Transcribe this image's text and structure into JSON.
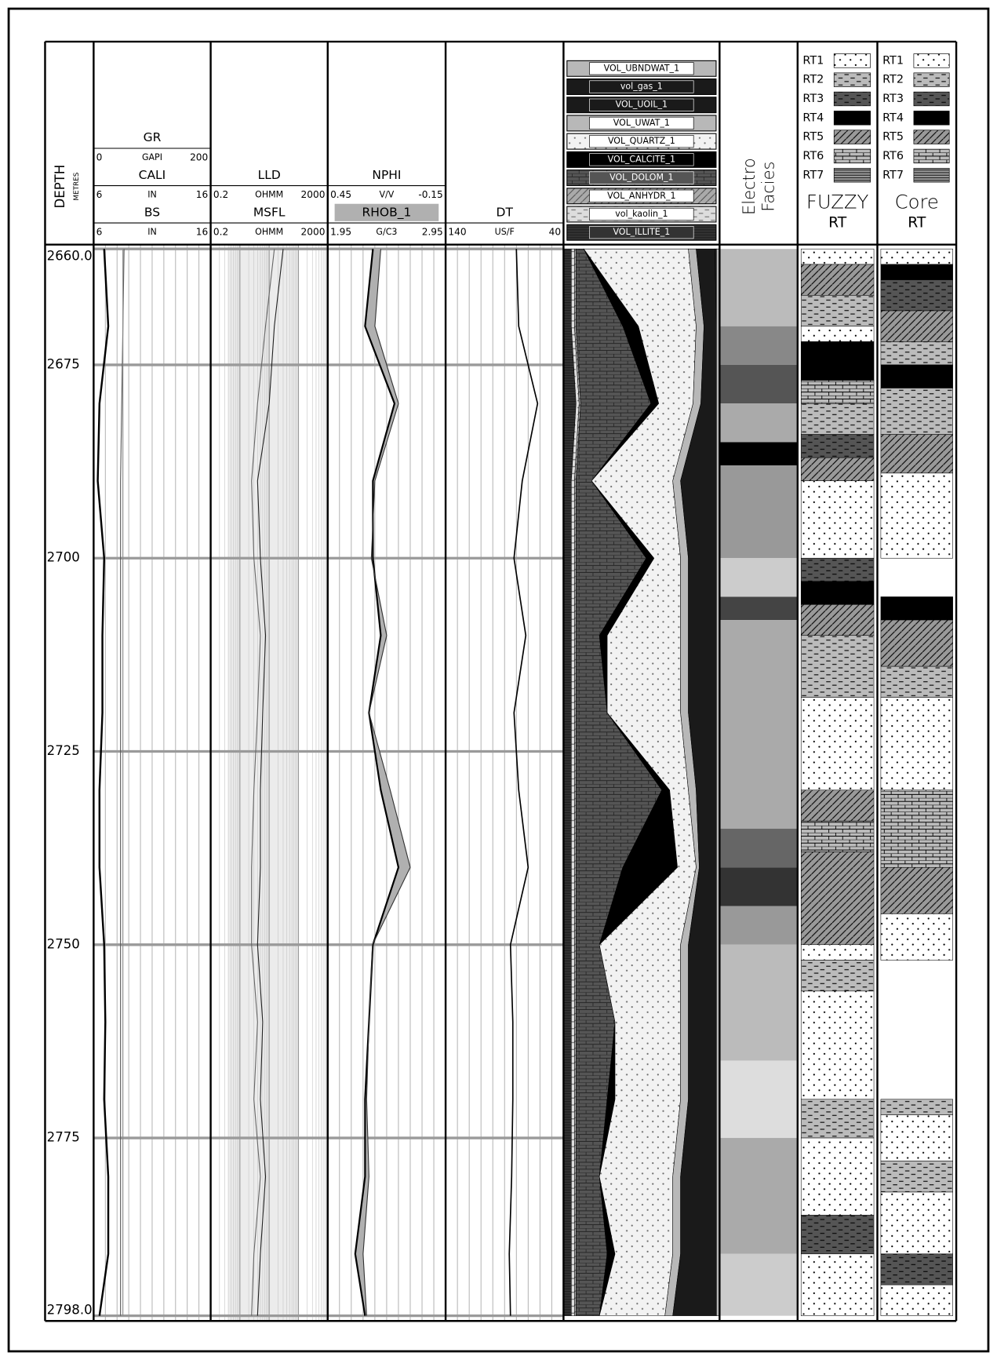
{
  "chart_data": {
    "type": "well-log",
    "depth_title": "DEPTH",
    "depth_unit": "METRES",
    "ylim": [
      2660,
      2798
    ],
    "yticks": [
      {
        "value": 2660,
        "label": "2660.0"
      },
      2675,
      2700,
      2725,
      2750,
      2775,
      {
        "value": 2798,
        "label": "2798.0"
      }
    ],
    "depth": [
      2660,
      2670,
      2680,
      2690,
      2700,
      2710,
      2720,
      2730,
      2740,
      2750,
      2760,
      2770,
      2780,
      2790,
      2798
    ],
    "tracks": [
      {
        "log": false,
        "curves": [
          {
            "name": "GR",
            "unit": "GAPI",
            "scale": [
              0,
              200
            ],
            "color": "#000000",
            "width": 2.2,
            "values": [
              18,
              25,
              10,
              7,
              18,
              15,
              15,
              10,
              10,
              18,
              20,
              18,
              25,
              25,
              10
            ]
          },
          {
            "name": "CALI",
            "unit": "IN",
            "scale": [
              6,
              16
            ],
            "color": "#555555",
            "width": 1,
            "values": [
              8.6,
              8.5,
              8.4,
              8.3,
              8.3,
              8.3,
              8.3,
              8.3,
              8.3,
              8.3,
              8.3,
              8.3,
              8.3,
              8.3,
              8.3
            ]
          },
          {
            "name": "BS",
            "unit": "IN",
            "scale": [
              6,
              16
            ],
            "color": "#888888",
            "width": 1,
            "values": [
              8.5,
              8.5,
              8.5,
              8.5,
              8.5,
              8.5,
              8.5,
              8.5,
              8.5,
              8.5,
              8.5,
              8.5,
              8.5,
              8.5,
              8.5
            ]
          }
        ]
      },
      {
        "log": true,
        "curves": [
          {
            "name": "LLD",
            "unit": "OHMM",
            "scale": [
              0.2,
              2000
            ],
            "color": "#222222",
            "width": 1,
            "values": [
              60,
              30,
              20,
              8,
              10,
              15,
              12,
              10,
              10,
              8,
              12,
              10,
              15,
              10,
              8
            ]
          },
          {
            "name": "MSFL",
            "unit": "OHMM",
            "scale": [
              0.2,
              2000
            ],
            "color": "#666666",
            "width": 1,
            "values": [
              30,
              15,
              8,
              5,
              6,
              10,
              8,
              6,
              5,
              5,
              8,
              6,
              10,
              6,
              5
            ]
          }
        ]
      },
      {
        "log": false,
        "curves": [
          {
            "name": "NPHI",
            "unit": "V/V",
            "scale": [
              0.45,
              -0.15
            ],
            "color": "#000000",
            "width": 2,
            "values": [
              0.22,
              0.26,
              0.11,
              0.22,
              0.22,
              0.18,
              0.24,
              0.18,
              0.09,
              0.22,
              0.24,
              0.26,
              0.26,
              0.31,
              0.26
            ]
          },
          {
            "name": "RHOB_1",
            "unit": "G/C3",
            "scale": [
              1.95,
              2.95
            ],
            "color": "#333333",
            "width": 1,
            "fill_color": "#b0b0b0",
            "values": [
              2.4,
              2.35,
              2.55,
              2.35,
              2.32,
              2.45,
              2.3,
              2.48,
              2.65,
              2.33,
              2.3,
              2.28,
              2.3,
              2.25,
              2.28
            ]
          }
        ]
      },
      {
        "log": false,
        "curves": [
          {
            "name": "DT",
            "unit": "US/F",
            "scale": [
              140,
              40
            ],
            "color": "#000000",
            "width": 1.5,
            "values": [
              80,
              78,
              62,
              75,
              82,
              72,
              82,
              78,
              70,
              85,
              83,
              83,
              84,
              86,
              85
            ]
          }
        ]
      }
    ],
    "volumes": [
      {
        "name": "VOL_UBNDWAT_1",
        "color": "#b8b8b8",
        "values": [
          0.02,
          0.02,
          0.02,
          0.02,
          0.02,
          0.02,
          0.02,
          0.02,
          0.02,
          0.02,
          0.02,
          0.02,
          0.02,
          0.02,
          0.02
        ]
      },
      {
        "name": "vol_gas_1",
        "color": "#1a1a1a",
        "values": [
          0.01,
          0,
          0,
          0,
          0,
          0,
          0,
          0,
          0,
          0,
          0,
          0,
          0,
          0,
          0
        ]
      },
      {
        "name": "VOL_UOIL_1",
        "color": "#1a1a1a",
        "values": [
          0.12,
          0.08,
          0.1,
          0.23,
          0.18,
          0.18,
          0.18,
          0.13,
          0.11,
          0.18,
          0.18,
          0.18,
          0.23,
          0.23,
          0.28
        ]
      },
      {
        "name": "VOL_UWAT_1",
        "color": "#b8b8b8",
        "values": [
          0.05,
          0.05,
          0.05,
          0.05,
          0.05,
          0.05,
          0.05,
          0.05,
          0.02,
          0.05,
          0.05,
          0.05,
          0.05,
          0.05,
          0.05
        ]
      },
      {
        "name": "VOL_QUARTZ_1",
        "color": "#f2f2f2",
        "pattern": "dots",
        "values": [
          0.67,
          0.37,
          0.22,
          0.52,
          0.17,
          0.47,
          0.47,
          0.12,
          0.12,
          0.52,
          0.42,
          0.42,
          0.47,
          0.37,
          0.42
        ]
      },
      {
        "name": "VOL_CALCITE_1",
        "color": "#000000",
        "values": [
          0,
          0.1,
          0.05,
          0,
          0.05,
          0.05,
          0,
          0.05,
          0.35,
          0,
          0,
          0.05,
          0,
          0.05,
          0
        ]
      },
      {
        "name": "VOL_DOLOM_1",
        "color": "#555555",
        "pattern": "brick",
        "values": [
          0.05,
          0.3,
          0.45,
          0.1,
          0.45,
          0.15,
          0.2,
          0.55,
          0.3,
          0.15,
          0.25,
          0.2,
          0.15,
          0.2,
          0.15
        ]
      },
      {
        "name": "VOL_ANHYDR_1",
        "color": "#aaaaaa",
        "pattern": "hatch",
        "values": [
          0.01,
          0.01,
          0.01,
          0.01,
          0.01,
          0.01,
          0.01,
          0.01,
          0.01,
          0.01,
          0.01,
          0.01,
          0.01,
          0.01,
          0.01
        ]
      },
      {
        "name": "vol_kaolin_1",
        "color": "#dddddd",
        "pattern": "dashes",
        "values": [
          0.02,
          0.02,
          0.02,
          0.02,
          0.02,
          0.02,
          0.02,
          0.02,
          0.02,
          0.02,
          0.02,
          0.02,
          0.02,
          0.02,
          0.02
        ]
      },
      {
        "name": "VOL_ILLITE_1",
        "color": "#333333",
        "pattern": "lines",
        "values": [
          0.05,
          0.05,
          0.08,
          0.05,
          0.05,
          0.05,
          0.05,
          0.05,
          0.05,
          0.05,
          0.05,
          0.05,
          0.05,
          0.05,
          0.05
        ]
      }
    ],
    "electro_facies": {
      "title": [
        "Electro",
        "Facies"
      ],
      "intervals": [
        {
          "top": 2660,
          "base": 2670,
          "color": "#bbbbbb"
        },
        {
          "top": 2670,
          "base": 2675,
          "color": "#888888"
        },
        {
          "top": 2675,
          "base": 2680,
          "color": "#555555"
        },
        {
          "top": 2680,
          "base": 2685,
          "color": "#aaaaaa"
        },
        {
          "top": 2685,
          "base": 2688,
          "color": "#000000"
        },
        {
          "top": 2688,
          "base": 2700,
          "color": "#999999"
        },
        {
          "top": 2700,
          "base": 2705,
          "color": "#cccccc"
        },
        {
          "top": 2705,
          "base": 2708,
          "color": "#444444"
        },
        {
          "top": 2708,
          "base": 2735,
          "color": "#aaaaaa"
        },
        {
          "top": 2735,
          "base": 2740,
          "color": "#666666"
        },
        {
          "top": 2740,
          "base": 2745,
          "color": "#333333"
        },
        {
          "top": 2745,
          "base": 2750,
          "color": "#999999"
        },
        {
          "top": 2750,
          "base": 2765,
          "color": "#bbbbbb"
        },
        {
          "top": 2765,
          "base": 2775,
          "color": "#dddddd"
        },
        {
          "top": 2775,
          "base": 2790,
          "color": "#aaaaaa"
        },
        {
          "top": 2790,
          "base": 2798,
          "color": "#cccccc"
        }
      ]
    },
    "rt_types": [
      {
        "name": "RT1",
        "color": "#ffffff",
        "pattern": "dots"
      },
      {
        "name": "RT2",
        "color": "#bbbbbb",
        "pattern": "dashes"
      },
      {
        "name": "RT3",
        "color": "#555555",
        "pattern": "dashes"
      },
      {
        "name": "RT4",
        "color": "#000000"
      },
      {
        "name": "RT5",
        "color": "#999999",
        "pattern": "hatch"
      },
      {
        "name": "RT6",
        "color": "#bbbbbb",
        "pattern": "brick"
      },
      {
        "name": "RT7",
        "color": "#999999",
        "pattern": "lines"
      }
    ],
    "rt_columns": [
      {
        "title": "FUZZY",
        "subtitle": "RT",
        "intervals": [
          {
            "top": 2660,
            "base": 2662,
            "rt": 1
          },
          {
            "top": 2662,
            "base": 2666,
            "rt": 5
          },
          {
            "top": 2666,
            "base": 2670,
            "rt": 2
          },
          {
            "top": 2670,
            "base": 2672,
            "rt": 1
          },
          {
            "top": 2672,
            "base": 2677,
            "rt": 4
          },
          {
            "top": 2677,
            "base": 2680,
            "rt": 6
          },
          {
            "top": 2680,
            "base": 2684,
            "rt": 2
          },
          {
            "top": 2684,
            "base": 2687,
            "rt": 3
          },
          {
            "top": 2687,
            "base": 2690,
            "rt": 5
          },
          {
            "top": 2690,
            "base": 2700,
            "rt": 1
          },
          {
            "top": 2700,
            "base": 2703,
            "rt": 3
          },
          {
            "top": 2703,
            "base": 2706,
            "rt": 4
          },
          {
            "top": 2706,
            "base": 2710,
            "rt": 5
          },
          {
            "top": 2710,
            "base": 2718,
            "rt": 2
          },
          {
            "top": 2718,
            "base": 2730,
            "rt": 1
          },
          {
            "top": 2730,
            "base": 2734,
            "rt": 5
          },
          {
            "top": 2734,
            "base": 2738,
            "rt": 6
          },
          {
            "top": 2738,
            "base": 2750,
            "rt": 5
          },
          {
            "top": 2750,
            "base": 2752,
            "rt": 1
          },
          {
            "top": 2752,
            "base": 2756,
            "rt": 2
          },
          {
            "top": 2756,
            "base": 2770,
            "rt": 1
          },
          {
            "top": 2770,
            "base": 2775,
            "rt": 2
          },
          {
            "top": 2775,
            "base": 2785,
            "rt": 1
          },
          {
            "top": 2785,
            "base": 2790,
            "rt": 3
          },
          {
            "top": 2790,
            "base": 2798,
            "rt": 1
          }
        ]
      },
      {
        "title": "Core",
        "subtitle": "RT",
        "intervals": [
          {
            "top": 2660,
            "base": 2662,
            "rt": 1
          },
          {
            "top": 2662,
            "base": 2664,
            "rt": 4
          },
          {
            "top": 2664,
            "base": 2668,
            "rt": 3
          },
          {
            "top": 2668,
            "base": 2672,
            "rt": 5
          },
          {
            "top": 2672,
            "base": 2675,
            "rt": 2
          },
          {
            "top": 2675,
            "base": 2678,
            "rt": 4
          },
          {
            "top": 2678,
            "base": 2684,
            "rt": 2
          },
          {
            "top": 2684,
            "base": 2689,
            "rt": 5
          },
          {
            "top": 2689,
            "base": 2700,
            "rt": 1
          },
          {
            "top": 2705,
            "base": 2708,
            "rt": 4
          },
          {
            "top": 2708,
            "base": 2714,
            "rt": 5
          },
          {
            "top": 2714,
            "base": 2718,
            "rt": 2
          },
          {
            "top": 2718,
            "base": 2730,
            "rt": 1
          },
          {
            "top": 2730,
            "base": 2740,
            "rt": 6
          },
          {
            "top": 2740,
            "base": 2746,
            "rt": 5
          },
          {
            "top": 2746,
            "base": 2752,
            "rt": 1
          },
          {
            "top": 2770,
            "base": 2772,
            "rt": 2
          },
          {
            "top": 2772,
            "base": 2778,
            "rt": 1
          },
          {
            "top": 2778,
            "base": 2782,
            "rt": 2
          },
          {
            "top": 2782,
            "base": 2790,
            "rt": 1
          },
          {
            "top": 2790,
            "base": 2794,
            "rt": 3
          },
          {
            "top": 2794,
            "base": 2798,
            "rt": 1
          }
        ]
      }
    ]
  }
}
